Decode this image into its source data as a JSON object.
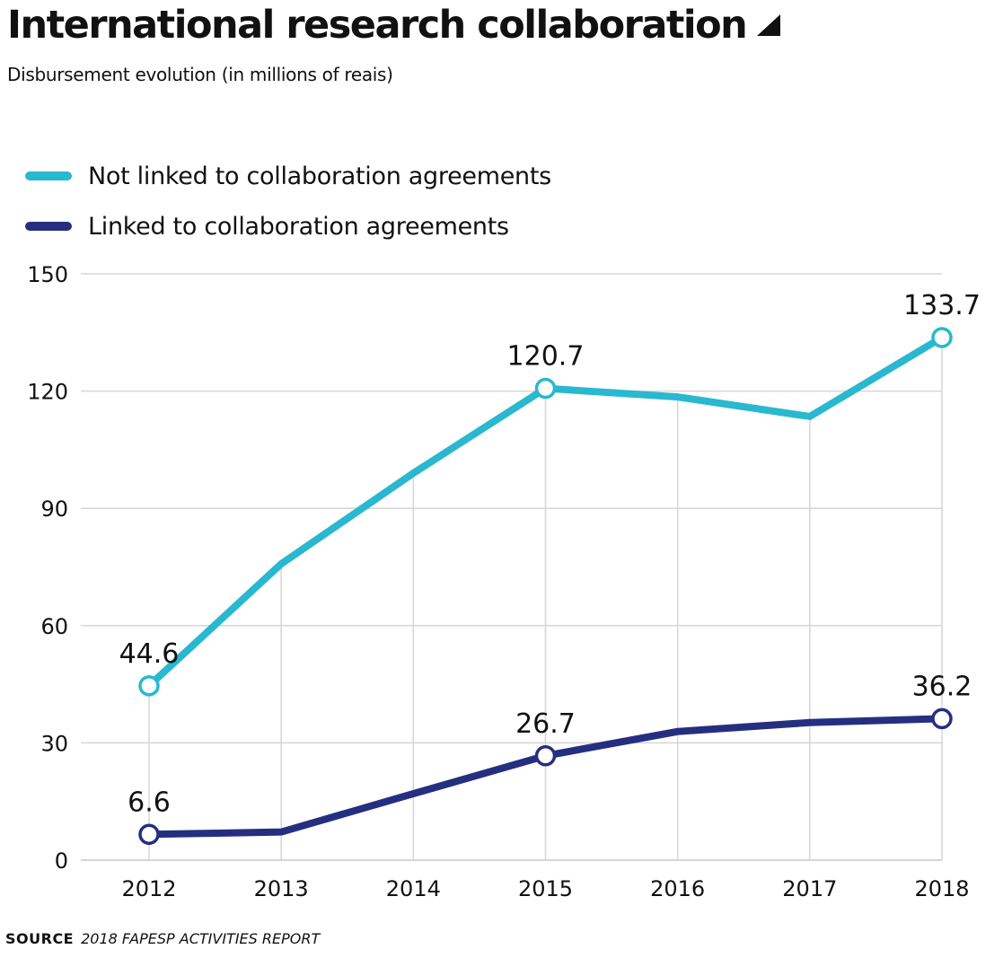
{
  "header": {
    "title": "International research collaboration",
    "subtitle": "Disbursement evolution (in millions of reais)"
  },
  "footer": {
    "source_label": "SOURCE",
    "source_text": "2018 FAPESP ACTIVITIES REPORT"
  },
  "colors": {
    "not_linked": "#29b8cf",
    "linked": "#252f80",
    "grid": "#d6d6d6",
    "text": "#111111"
  },
  "chart_data": {
    "type": "line",
    "title": "International research collaboration",
    "subtitle": "Disbursement evolution (in millions of reais)",
    "xlabel": "",
    "ylabel": "",
    "x": [
      "2012",
      "2013",
      "2014",
      "2015",
      "2016",
      "2017",
      "2018"
    ],
    "ylim": [
      0,
      150
    ],
    "yticks": [
      0,
      30,
      60,
      90,
      120,
      150
    ],
    "grid": true,
    "legend_position": "top-left",
    "series": [
      {
        "name": "Not linked to collaboration agreements",
        "color": "#29b8cf",
        "values": [
          44.6,
          75.8,
          99.0,
          120.7,
          118.5,
          113.5,
          133.7
        ],
        "labeled_points": [
          {
            "index": 0,
            "label": "44.6"
          },
          {
            "index": 3,
            "label": "120.7"
          },
          {
            "index": 6,
            "label": "133.7"
          }
        ]
      },
      {
        "name": "Linked to collaboration agreements",
        "color": "#252f80",
        "values": [
          6.6,
          7.2,
          17.0,
          26.7,
          32.9,
          35.2,
          36.2
        ],
        "labeled_points": [
          {
            "index": 0,
            "label": "6.6"
          },
          {
            "index": 3,
            "label": "26.7"
          },
          {
            "index": 6,
            "label": "36.2"
          }
        ]
      }
    ]
  }
}
